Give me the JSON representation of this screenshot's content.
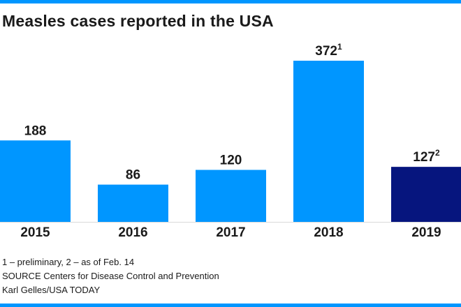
{
  "title": "Measles cases reported in the USA",
  "colors": {
    "accent": "#0096FF",
    "highlight": "#06157E",
    "rule": "#0096FF"
  },
  "chart_data": {
    "type": "bar",
    "title": "Measles cases reported in the USA",
    "categories": [
      "2015",
      "2016",
      "2017",
      "2018",
      "2019"
    ],
    "values": [
      188,
      86,
      120,
      372,
      127
    ],
    "value_labels": [
      "188",
      "86",
      "120",
      "372",
      "127"
    ],
    "superscripts": [
      "",
      "",
      "",
      "1",
      "2"
    ],
    "highlighted_category": "2019",
    "xlabel": "",
    "ylabel": "",
    "ylim": [
      0,
      400
    ],
    "grid": false,
    "legend": "none"
  },
  "footnotes": {
    "note": "1 – preliminary, 2 – as of Feb. 14",
    "source": "SOURCE Centers for Disease Control and Prevention",
    "credit": "Karl Gelles/USA TODAY"
  }
}
